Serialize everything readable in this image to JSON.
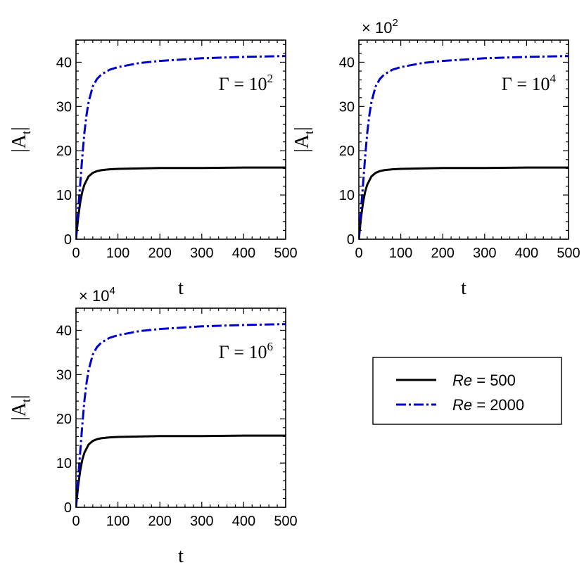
{
  "chart_data": [
    {
      "type": "line",
      "multiplier": "",
      "multiplier_exp": "",
      "annotation": {
        "base": "Γ = 10",
        "exp": "2"
      },
      "xlabel": "t",
      "ylabel": {
        "main": "|A",
        "sub": "t",
        "close": "|"
      },
      "xlim": [
        0,
        500
      ],
      "ylim": [
        0,
        45
      ],
      "xticks": [
        0,
        100,
        200,
        300,
        400,
        500
      ],
      "yticks": [
        0,
        10,
        20,
        30,
        40
      ],
      "series": [
        {
          "name": "Re = 500",
          "x": [
            0,
            5,
            10,
            15,
            20,
            30,
            40,
            50,
            60,
            80,
            100,
            150,
            200,
            300,
            400,
            500
          ],
          "values": [
            0,
            4.8,
            8.3,
            10.7,
            12.3,
            14.2,
            15.0,
            15.4,
            15.6,
            15.8,
            15.9,
            16.0,
            16.1,
            16.1,
            16.2,
            16.2
          ]
        },
        {
          "name": "Re = 2000",
          "x": [
            0,
            5,
            10,
            15,
            20,
            25,
            30,
            40,
            50,
            60,
            80,
            100,
            150,
            200,
            250,
            300,
            400,
            500
          ],
          "values": [
            0,
            6.5,
            12.5,
            18.5,
            24.0,
            28.0,
            31.0,
            34.5,
            36.2,
            37.2,
            38.3,
            38.9,
            39.8,
            40.3,
            40.6,
            40.9,
            41.2,
            41.4
          ]
        }
      ]
    },
    {
      "type": "line",
      "multiplier": "× 10",
      "multiplier_exp": "2",
      "annotation": {
        "base": "Γ = 10",
        "exp": "4"
      },
      "xlabel": "t",
      "ylabel": {
        "main": "|A",
        "sub": "t",
        "close": "|"
      },
      "xlim": [
        0,
        500
      ],
      "ylim": [
        0,
        45
      ],
      "xticks": [
        0,
        100,
        200,
        300,
        400,
        500
      ],
      "yticks": [
        0,
        10,
        20,
        30,
        40
      ],
      "series": [
        {
          "name": "Re = 500",
          "x": [
            0,
            5,
            10,
            15,
            20,
            30,
            40,
            50,
            60,
            80,
            100,
            150,
            200,
            300,
            400,
            500
          ],
          "values": [
            0,
            4.8,
            8.3,
            10.7,
            12.3,
            14.2,
            15.0,
            15.4,
            15.6,
            15.8,
            15.9,
            16.0,
            16.1,
            16.1,
            16.2,
            16.2
          ]
        },
        {
          "name": "Re = 2000",
          "x": [
            0,
            5,
            10,
            15,
            20,
            25,
            30,
            40,
            50,
            60,
            80,
            100,
            150,
            200,
            250,
            300,
            400,
            500
          ],
          "values": [
            0,
            6.5,
            12.5,
            18.5,
            24.0,
            28.0,
            31.0,
            34.5,
            36.2,
            37.2,
            38.3,
            38.9,
            39.8,
            40.3,
            40.6,
            40.9,
            41.2,
            41.4
          ]
        }
      ]
    },
    {
      "type": "line",
      "multiplier": "× 10",
      "multiplier_exp": "4",
      "annotation": {
        "base": "Γ = 10",
        "exp": "6"
      },
      "xlabel": "t",
      "ylabel": {
        "main": "|A",
        "sub": "t",
        "close": "|"
      },
      "xlim": [
        0,
        500
      ],
      "ylim": [
        0,
        45
      ],
      "xticks": [
        0,
        100,
        200,
        300,
        400,
        500
      ],
      "yticks": [
        0,
        10,
        20,
        30,
        40
      ],
      "series": [
        {
          "name": "Re = 500",
          "x": [
            0,
            5,
            10,
            15,
            20,
            30,
            40,
            50,
            60,
            80,
            100,
            150,
            200,
            300,
            400,
            500
          ],
          "values": [
            0,
            4.8,
            8.3,
            10.7,
            12.3,
            14.2,
            15.0,
            15.4,
            15.6,
            15.8,
            15.9,
            16.0,
            16.1,
            16.1,
            16.2,
            16.2
          ]
        },
        {
          "name": "Re = 2000",
          "x": [
            0,
            5,
            10,
            15,
            20,
            25,
            30,
            40,
            50,
            60,
            80,
            100,
            150,
            200,
            250,
            300,
            400,
            500
          ],
          "values": [
            0,
            6.5,
            12.5,
            18.5,
            24.0,
            28.0,
            31.0,
            34.5,
            36.2,
            37.2,
            38.3,
            38.9,
            39.8,
            40.3,
            40.6,
            40.9,
            41.2,
            41.4
          ]
        }
      ]
    }
  ],
  "legend": {
    "entries": [
      {
        "italic": "Re",
        "rest": " = 500",
        "color": "#000000",
        "style": "solid"
      },
      {
        "italic": "Re",
        "rest": " = 2000",
        "color": "#0000cc",
        "style": "dash-dot"
      }
    ]
  },
  "colors": {
    "re500": "#000000",
    "re2000": "#0000cc"
  }
}
